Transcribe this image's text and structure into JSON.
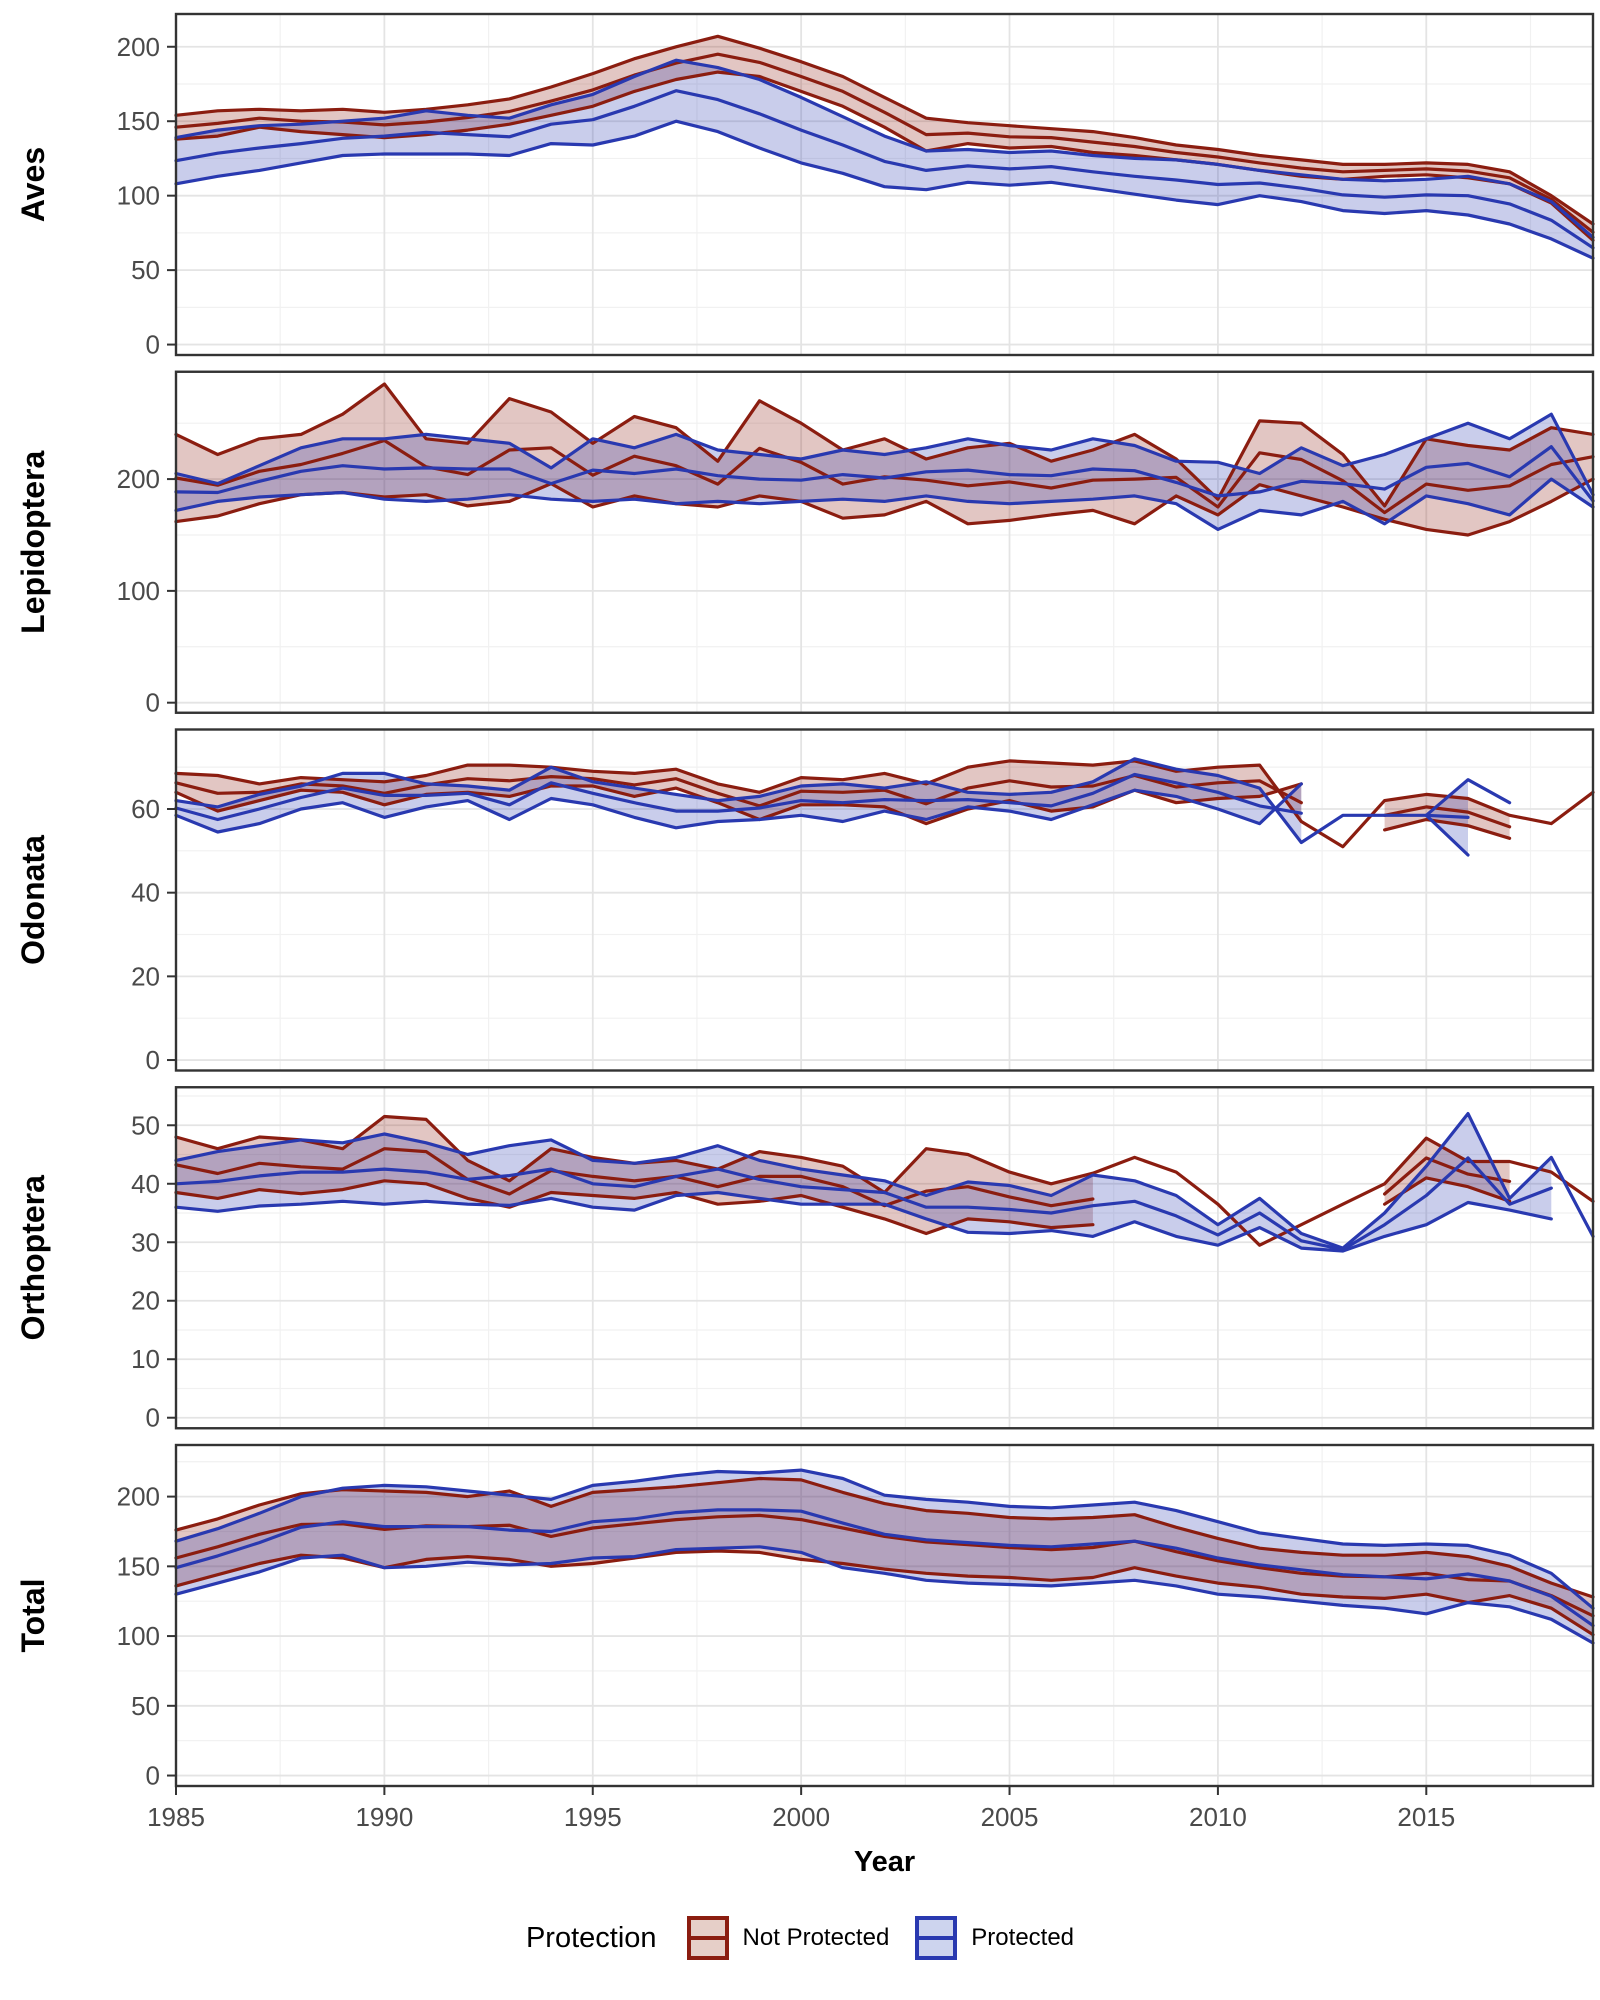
{
  "legend": {
    "title": "Protection",
    "items": [
      {
        "label": "Not Protected",
        "line_color": "#8B1D10",
        "fill_color": "#E6CFC8"
      },
      {
        "label": "Protected",
        "line_color": "#2939B0",
        "fill_color": "#CDD4EE"
      }
    ]
  },
  "style": {
    "np_line": "#8B1D10",
    "p_line": "#2939B0",
    "ribbon_opacity": 0.25,
    "grid_major": "#E4E4E4",
    "grid_minor": "#F1F1F1",
    "panel_border": "#333333",
    "axis_text": "#4a4a4a",
    "strip_text": "#000000"
  },
  "chart_data": {
    "type": "area",
    "subtype": "ribbon-with-mean-lines",
    "xlabel": "Year",
    "x": {
      "min": 1985,
      "max": 2019,
      "years": [
        1985,
        1986,
        1987,
        1988,
        1989,
        1990,
        1991,
        1992,
        1993,
        1994,
        1995,
        1996,
        1997,
        1998,
        1999,
        2000,
        2001,
        2002,
        2003,
        2004,
        2005,
        2006,
        2007,
        2008,
        2009,
        2010,
        2011,
        2012,
        2013,
        2014,
        2015,
        2016,
        2017,
        2018,
        2019
      ],
      "tick_labels": [
        "1985",
        "1990",
        "1995",
        "2000",
        "2005",
        "2010",
        "2015"
      ],
      "tick_years": [
        1985,
        1990,
        1995,
        2000,
        2005,
        2010,
        2015
      ],
      "minor_years": [
        1987.5,
        1992.5,
        1997.5,
        2002.5,
        2007.5,
        2012.5,
        2017.5
      ]
    },
    "legend_position": "bottom",
    "grid": true,
    "panels": [
      {
        "label": "Aves",
        "ylim": [
          -7,
          222
        ],
        "yticks": [
          0,
          50,
          100,
          150,
          200
        ],
        "yminor": [
          25,
          75,
          125,
          175
        ],
        "series": [
          {
            "name": "Not Protected",
            "lower": [
              138,
              140,
              146,
              143,
              141,
              139,
              141,
              144,
              148,
              154,
              160,
              170,
              178,
              183,
              180,
              170,
              160,
              146,
              130,
              135,
              132,
              133,
              129,
              127,
              124,
              121,
              117,
              113,
              111,
              113,
              114,
              112,
              108,
              95,
              70
            ],
            "upper": [
              154,
              157,
              158,
              157,
              158,
              156,
              158,
              161,
              165,
              173,
              182,
              192,
              200,
              207,
              199,
              190,
              180,
              166,
              152,
              149,
              147,
              145,
              143,
              139,
              134,
              131,
              127,
              124,
              121,
              121,
              122,
              121,
              116,
              100,
              81
            ]
          },
          {
            "name": "Protected",
            "lower": [
              108,
              113,
              117,
              122,
              127,
              128,
              128,
              128,
              127,
              135,
              134,
              140,
              150,
              143,
              132,
              122,
              115,
              106,
              104,
              109,
              107,
              109,
              105,
              101,
              97,
              94,
              100,
              96,
              90,
              88,
              90,
              87,
              81,
              71,
              58
            ],
            "upper": [
              139,
              144,
              147,
              148,
              150,
              152,
              157,
              154,
              152,
              161,
              168,
              180,
              191,
              186,
              178,
              166,
              153,
              140,
              130,
              131,
              129,
              130,
              127,
              125,
              124,
              121,
              117,
              114,
              111,
              110,
              111,
              113,
              108,
              96,
              72
            ]
          }
        ]
      },
      {
        "label": "Lepidoptera",
        "ylim": [
          -9,
          296
        ],
        "yticks": [
          0,
          100,
          200
        ],
        "yminor": [
          50,
          150,
          250
        ],
        "series": [
          {
            "name": "Not Protected",
            "lower": [
              162,
              167,
              178,
              186,
              188,
              184,
              186,
              176,
              180,
              196,
              175,
              185,
              178,
              175,
              185,
              180,
              165,
              168,
              180,
              160,
              163,
              168,
              172,
              160,
              185,
              168,
              195,
              185,
              175,
              164,
              155,
              150,
              162,
              180,
              200
            ],
            "upper": [
              240,
              222,
              236,
              240,
              258,
              285,
              236,
              232,
              272,
              260,
              232,
              256,
              246,
              216,
              270,
              250,
              226,
              236,
              218,
              228,
              232,
              216,
              226,
              240,
              218,
              182,
              252,
              250,
              222,
              176,
              236,
              230,
              226,
              246,
              240
            ]
          },
          {
            "name": "Protected",
            "lower": [
              172,
              180,
              184,
              186,
              188,
              182,
              180,
              182,
              186,
              182,
              180,
              182,
              178,
              180,
              178,
              180,
              182,
              180,
              185,
              180,
              178,
              180,
              182,
              185,
              178,
              155,
              172,
              168,
              180,
              160,
              185,
              178,
              168,
              200,
              175
            ],
            "upper": [
              205,
              196,
              212,
              228,
              236,
              236,
              240,
              236,
              232,
              210,
              236,
              228,
              240,
              226,
              222,
              218,
              226,
              222,
              228,
              236,
              230,
              226,
              236,
              230,
              216,
              215,
              205,
              228,
              212,
              222,
              236,
              250,
              236,
              258,
              186
            ]
          }
        ]
      },
      {
        "label": "Odonata",
        "ylim": [
          -2.5,
          79
        ],
        "yticks": [
          0,
          20,
          40,
          60
        ],
        "yminor": [
          10,
          30,
          50,
          70
        ],
        "series": [
          {
            "name": "Not Protected",
            "lower": [
              64,
              59.5,
              62,
              64.5,
              64,
              61,
              63.5,
              64,
              63,
              65.5,
              65.5,
              63,
              65,
              61.5,
              57.5,
              61,
              61,
              60.5,
              56.5,
              60,
              62,
              59.5,
              60.5,
              64.5,
              61.5,
              62.5,
              63,
              66,
              null,
              55,
              57.5,
              56,
              53,
              null,
              null
            ],
            "upper": [
              68.5,
              68,
              66,
              67.5,
              67,
              66.5,
              68,
              70.5,
              70.5,
              70,
              69,
              68.5,
              69.5,
              66,
              64,
              67.5,
              67,
              68.5,
              66,
              70,
              71.5,
              71,
              70.5,
              71.5,
              69,
              70,
              70.5,
              57,
              51,
              62,
              63.5,
              62.5,
              58.5,
              56.5,
              64
            ]
          },
          {
            "name": "Protected",
            "lower": [
              58.5,
              54.5,
              56.5,
              60,
              61.5,
              58,
              60.5,
              62,
              57.5,
              62.5,
              61,
              58,
              55.5,
              57,
              57.5,
              58.5,
              57,
              59.5,
              57.5,
              60.5,
              59.5,
              57.5,
              61,
              64.5,
              63,
              60,
              56.5,
              66,
              null,
              null,
              58.5,
              49,
              null,
              null,
              null
            ],
            "upper": [
              62,
              60.5,
              63.5,
              65.5,
              68.5,
              68.5,
              66,
              65.5,
              64.5,
              70,
              66.5,
              65,
              63.5,
              62,
              63,
              65.5,
              66,
              65,
              66.5,
              64,
              63.5,
              64,
              66.5,
              72,
              69.5,
              68,
              65,
              52,
              58.5,
              58.5,
              58.5,
              67,
              61.5,
              null,
              null
            ]
          }
        ]
      },
      {
        "label": "Orthoptera",
        "ylim": [
          -1.8,
          56.5
        ],
        "yticks": [
          0,
          10,
          20,
          30,
          40,
          50
        ],
        "yminor": [
          5,
          15,
          25,
          35,
          45,
          55
        ],
        "series": [
          {
            "name": "Not Protected",
            "lower": [
              38.5,
              37.5,
              39,
              38.3,
              39,
              40.5,
              40,
              37.5,
              36,
              38.5,
              38,
              37.5,
              38.5,
              36.5,
              37,
              38,
              36,
              34,
              31.5,
              34,
              33.5,
              32.5,
              33,
              null,
              null,
              null,
              null,
              null,
              null,
              36.5,
              41,
              39.5,
              37,
              null,
              null
            ],
            "upper": [
              48,
              46,
              48,
              47.5,
              46,
              51.5,
              51,
              44,
              40.5,
              46,
              44.5,
              43.5,
              44,
              42.5,
              45.5,
              44.5,
              43,
              38.5,
              46,
              45,
              42,
              40,
              41.8,
              44.5,
              42,
              36.5,
              29.5,
              33,
              36.5,
              40,
              47.8,
              43.8,
              43.8,
              42,
              37
            ]
          },
          {
            "name": "Protected",
            "lower": [
              36,
              35.3,
              36.2,
              36.5,
              37,
              36.5,
              37,
              36.5,
              36.3,
              37.5,
              36,
              35.5,
              38,
              38.5,
              37.5,
              36.5,
              36.5,
              36.5,
              34,
              31.7,
              31.5,
              32,
              31,
              33.5,
              31,
              29.5,
              32.5,
              29,
              28.5,
              31,
              33,
              36.8,
              35.5,
              34,
              null
            ],
            "upper": [
              44,
              45.5,
              46.5,
              47.5,
              47,
              48.5,
              47,
              45,
              46.5,
              47.5,
              44,
              43.5,
              44.5,
              46.5,
              44,
              42.5,
              41.5,
              40.5,
              38,
              40.3,
              39.7,
              38,
              41.5,
              40.5,
              38,
              33,
              37.5,
              31.5,
              29,
              35,
              43,
              52,
              37.5,
              44.5,
              31
            ]
          }
        ]
      },
      {
        "label": "Total",
        "ylim": [
          -7.5,
          237
        ],
        "yticks": [
          0,
          50,
          100,
          150,
          200
        ],
        "yminor": [
          25,
          75,
          125,
          175,
          225
        ],
        "series": [
          {
            "name": "Not Protected",
            "lower": [
              136,
              144,
              152,
              158,
              156,
              149,
              155,
              157,
              155,
              150,
              152,
              156,
              160,
              161,
              160,
              155,
              152,
              148,
              145,
              143,
              142,
              140,
              142,
              149,
              143,
              138,
              135,
              130,
              128,
              127,
              130,
              124,
              129,
              120,
              101
            ],
            "upper": [
              176,
              184,
              194,
              202,
              205,
              204,
              203,
              200,
              204,
              193,
              203,
              205,
              207,
              210,
              213,
              212,
              203,
              195,
              190,
              188,
              185,
              184,
              185,
              187,
              178,
              170,
              163,
              160,
              158,
              158,
              160,
              157,
              150,
              138,
              128
            ]
          },
          {
            "name": "Protected",
            "lower": [
              130,
              138,
              146,
              156,
              158,
              149,
              150,
              153,
              151,
              152,
              156,
              157,
              162,
              163,
              164,
              160,
              149,
              145,
              140,
              138,
              137,
              136,
              138,
              140,
              136,
              130,
              128,
              125,
              122,
              120,
              116,
              124,
              121,
              112,
              95
            ],
            "upper": [
              168,
              177,
              188,
              200,
              206,
              208,
              207,
              204,
              201,
              198,
              208,
              211,
              215,
              218,
              217,
              219,
              213,
              201,
              198,
              196,
              193,
              192,
              194,
              196,
              190,
              182,
              174,
              170,
              166,
              165,
              166,
              165,
              158,
              145,
              120
            ]
          }
        ]
      }
    ]
  }
}
